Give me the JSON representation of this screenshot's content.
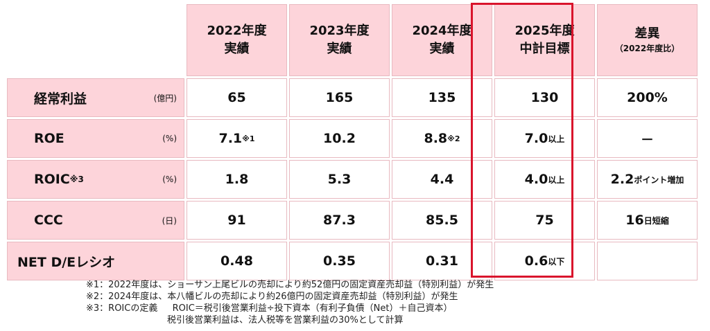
{
  "headers": [
    {
      "line1": "2022年度",
      "line2": "実績"
    },
    {
      "line1": "2023年度",
      "line2": "実績"
    },
    {
      "line1": "2024年度",
      "line2": "実績"
    },
    {
      "line1": "2025年度",
      "line2": "中計目標"
    },
    {
      "line1": "差異",
      "line2": "（2022年度比）"
    }
  ],
  "rows": [
    {
      "label": "経常利益",
      "label_sup": "",
      "unit": "(億円)",
      "values": [
        {
          "main": "65",
          "suffix": "",
          "sup": ""
        },
        {
          "main": "165",
          "suffix": "",
          "sup": ""
        },
        {
          "main": "135",
          "suffix": "",
          "sup": ""
        },
        {
          "main": "130",
          "suffix": "",
          "sup": ""
        },
        {
          "main": "200%",
          "suffix": "",
          "sup": ""
        }
      ]
    },
    {
      "label": "ROE",
      "label_sup": "",
      "unit": "(%)",
      "values": [
        {
          "main": "7.1",
          "suffix": "",
          "sup": "※1"
        },
        {
          "main": "10.2",
          "suffix": "",
          "sup": ""
        },
        {
          "main": "8.8",
          "suffix": "",
          "sup": "※2"
        },
        {
          "main": "7.0",
          "suffix": "以上",
          "sup": ""
        },
        {
          "main": "－",
          "suffix": "",
          "sup": ""
        }
      ]
    },
    {
      "label": "ROIC",
      "label_sup": "※3",
      "unit": "(%)",
      "values": [
        {
          "main": "1.8",
          "suffix": "",
          "sup": ""
        },
        {
          "main": "5.3",
          "suffix": "",
          "sup": ""
        },
        {
          "main": "4.4",
          "suffix": "",
          "sup": ""
        },
        {
          "main": "4.0",
          "suffix": "以上",
          "sup": ""
        },
        {
          "main": "2.2",
          "suffix": "ポイント増加",
          "sup": ""
        }
      ]
    },
    {
      "label": "CCC",
      "label_sup": "",
      "unit": "(日)",
      "values": [
        {
          "main": "91",
          "suffix": "",
          "sup": ""
        },
        {
          "main": "87.3",
          "suffix": "",
          "sup": ""
        },
        {
          "main": "85.5",
          "suffix": "",
          "sup": ""
        },
        {
          "main": "75",
          "suffix": "",
          "sup": ""
        },
        {
          "main": "16",
          "suffix": "日短縮",
          "sup": ""
        }
      ]
    },
    {
      "label": "NET D/Eレシオ",
      "label_sup": "",
      "unit": "",
      "values": [
        {
          "main": "0.48",
          "suffix": "",
          "sup": ""
        },
        {
          "main": "0.35",
          "suffix": "",
          "sup": ""
        },
        {
          "main": "0.31",
          "suffix": "",
          "sup": ""
        },
        {
          "main": "0.6",
          "suffix": "以下",
          "sup": ""
        },
        {
          "main": "",
          "suffix": "",
          "sup": ""
        }
      ]
    }
  ],
  "notes": [
    "※1：2022年度は、ショーサン上尾ビルの売却により約52億円の固定資産売却益（特別利益）が発生",
    "※2：2024年度は、本八幡ビルの売却により約26億円の固定資産売却益（特別利益）が発生",
    "※3：ROICの定義　  ROIC＝税引後営業利益÷投下資本（有利子負債（Net）＋自己資本）",
    "　　　　　　　　　税引後営業利益は、法人税等を営業利益の30%として計算"
  ],
  "colors": {
    "header_bg": "#fdd4da",
    "highlight_border": "#d9142c"
  }
}
